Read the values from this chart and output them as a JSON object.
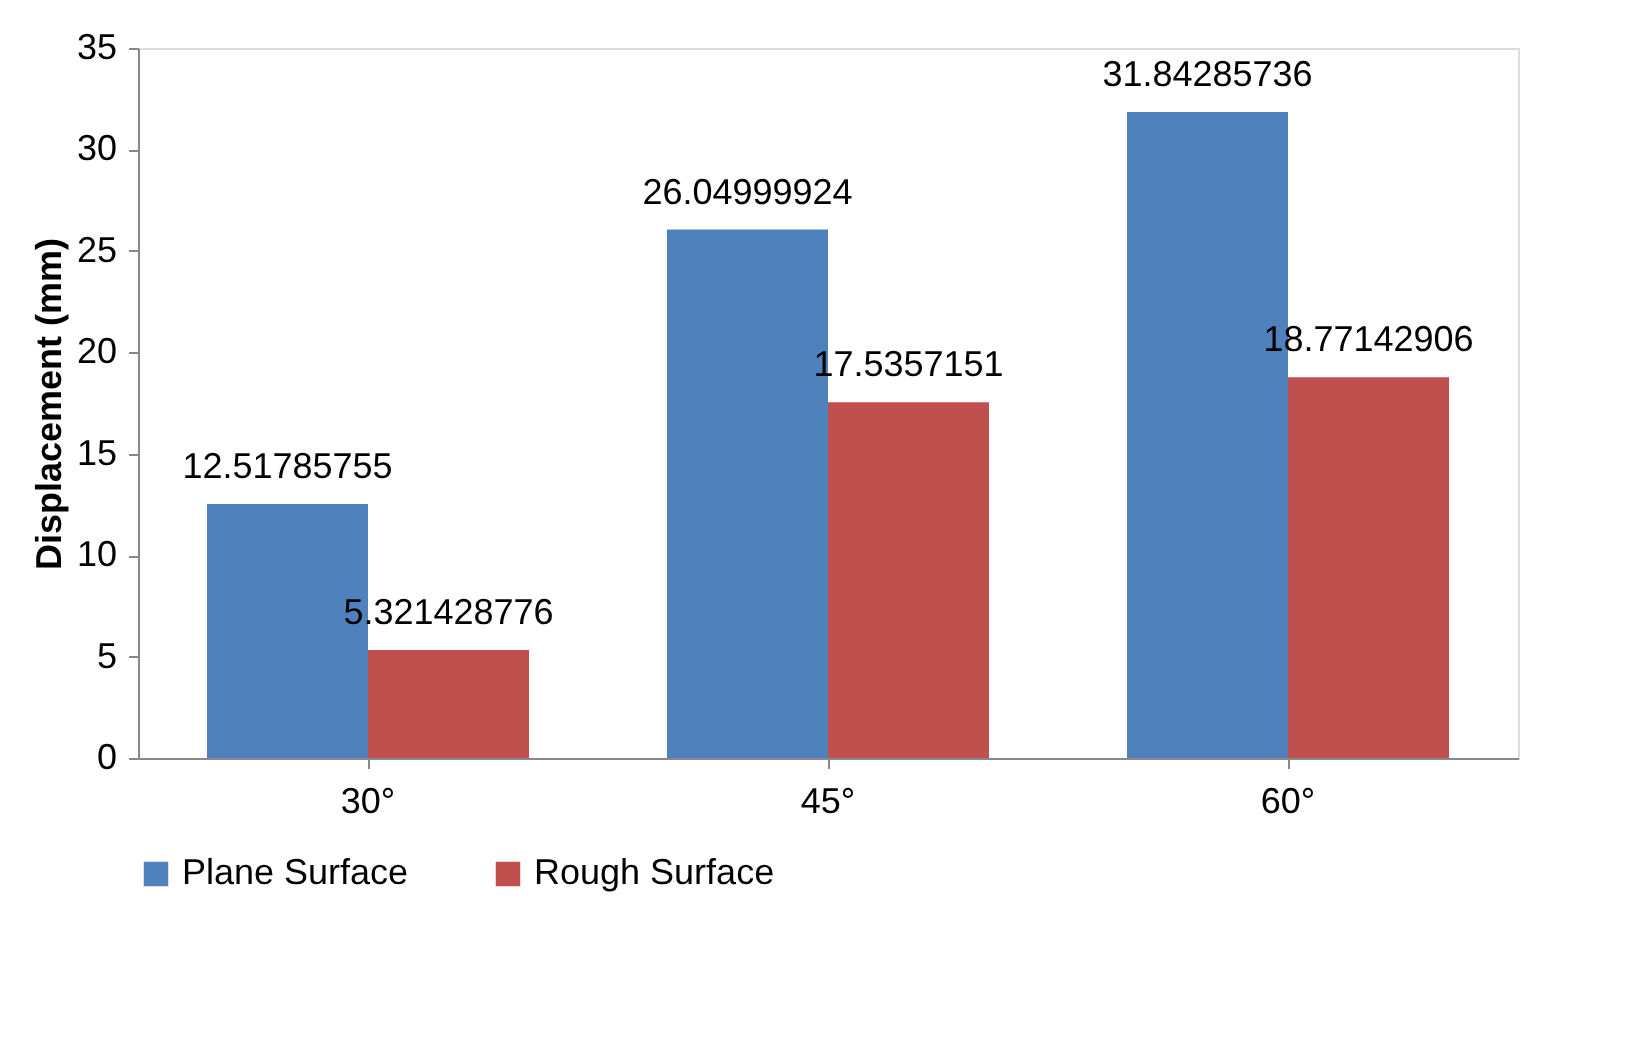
{
  "chart_data": {
    "type": "bar",
    "ylabel": "Displacement (mm)",
    "categories": [
      "30°",
      "45°",
      "60°"
    ],
    "series": [
      {
        "name": "Plane Surface",
        "color": "#4f81bd",
        "values": [
          12.51785755,
          26.04999924,
          31.84285736
        ]
      },
      {
        "name": "Rough Surface",
        "color": "#c0504d",
        "values": [
          5.321428776,
          17.5357151,
          18.77142906
        ]
      }
    ],
    "ylim": [
      0,
      35
    ],
    "yticks": [
      0,
      5,
      10,
      15,
      20,
      25,
      30,
      35
    ],
    "data_labels": true,
    "legend": "bottom"
  }
}
